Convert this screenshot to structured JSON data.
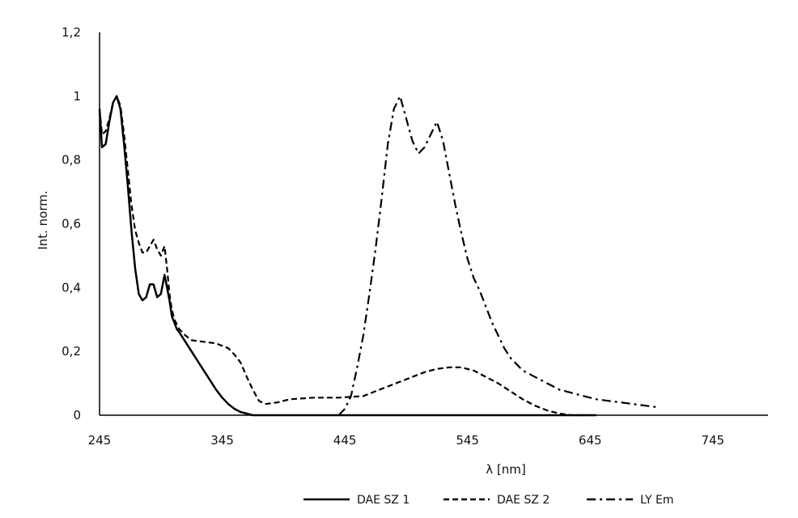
{
  "chart_data": {
    "type": "line",
    "xlabel": "λ [nm]",
    "ylabel": "Int. norm.",
    "xlim": [
      245,
      790
    ],
    "ylim": [
      0,
      1.2
    ],
    "xticks": [
      245,
      345,
      445,
      545,
      645,
      745
    ],
    "xtick_labels": [
      "245",
      "345",
      "445",
      "545",
      "645",
      "745"
    ],
    "yticks": [
      0,
      0.2,
      0.4,
      0.6,
      0.8,
      1,
      1.2
    ],
    "ytick_labels": [
      "0",
      "0,2",
      "0,4",
      "0,6",
      "0,8",
      "1",
      "1,2"
    ],
    "grid": false,
    "legend_position": "bottom",
    "series": [
      {
        "name": "DAE SZ 1",
        "style": "solid",
        "color": "#000000",
        "x": [
          245,
          247,
          250,
          253,
          256,
          259,
          262,
          265,
          268,
          271,
          274,
          277,
          280,
          283,
          286,
          289,
          292,
          295,
          298,
          300,
          302,
          304,
          306,
          308,
          310,
          315,
          320,
          325,
          330,
          335,
          340,
          345,
          350,
          355,
          360,
          365,
          370,
          380,
          400,
          450,
          500,
          550,
          600,
          650
        ],
        "y": [
          0.96,
          0.84,
          0.85,
          0.92,
          0.98,
          1.0,
          0.96,
          0.85,
          0.72,
          0.58,
          0.46,
          0.38,
          0.36,
          0.37,
          0.41,
          0.41,
          0.37,
          0.38,
          0.44,
          0.4,
          0.36,
          0.31,
          0.29,
          0.27,
          0.26,
          0.23,
          0.2,
          0.17,
          0.14,
          0.11,
          0.08,
          0.055,
          0.035,
          0.02,
          0.01,
          0.005,
          0.0,
          0.0,
          0.0,
          0.0,
          0.0,
          0.0,
          0.0,
          0.0
        ]
      },
      {
        "name": "DAE SZ 2",
        "style": "dashed",
        "color": "#000000",
        "x": [
          245,
          247,
          250,
          253,
          256,
          259,
          262,
          265,
          268,
          271,
          274,
          277,
          280,
          283,
          286,
          289,
          292,
          295,
          298,
          300,
          302,
          304,
          306,
          310,
          315,
          320,
          330,
          340,
          350,
          355,
          360,
          365,
          370,
          375,
          380,
          390,
          400,
          420,
          440,
          460,
          470,
          480,
          490,
          500,
          510,
          520,
          530,
          540,
          550,
          560,
          570,
          580,
          590,
          600,
          610,
          620,
          630,
          640,
          650
        ],
        "y": [
          0.96,
          0.88,
          0.89,
          0.93,
          0.98,
          1.0,
          0.97,
          0.88,
          0.77,
          0.66,
          0.58,
          0.54,
          0.51,
          0.51,
          0.53,
          0.55,
          0.52,
          0.5,
          0.53,
          0.46,
          0.38,
          0.33,
          0.3,
          0.27,
          0.25,
          0.235,
          0.23,
          0.225,
          0.21,
          0.19,
          0.165,
          0.12,
          0.08,
          0.045,
          0.035,
          0.04,
          0.05,
          0.055,
          0.055,
          0.06,
          0.075,
          0.09,
          0.105,
          0.12,
          0.135,
          0.145,
          0.15,
          0.15,
          0.14,
          0.12,
          0.1,
          0.075,
          0.05,
          0.03,
          0.015,
          0.005,
          0.0,
          0.0,
          0.0
        ]
      },
      {
        "name": "LY Em",
        "style": "dash-dot",
        "color": "#000000",
        "x": [
          440,
          445,
          450,
          455,
          460,
          465,
          470,
          475,
          480,
          485,
          490,
          495,
          500,
          505,
          510,
          515,
          520,
          525,
          530,
          535,
          540,
          545,
          550,
          555,
          560,
          565,
          570,
          575,
          580,
          590,
          600,
          610,
          620,
          630,
          640,
          650,
          660,
          670,
          680,
          690,
          700
        ],
        "y": [
          0.0,
          0.02,
          0.06,
          0.15,
          0.25,
          0.38,
          0.52,
          0.68,
          0.85,
          0.96,
          1.0,
          0.93,
          0.86,
          0.82,
          0.84,
          0.88,
          0.92,
          0.86,
          0.76,
          0.66,
          0.57,
          0.49,
          0.43,
          0.39,
          0.34,
          0.29,
          0.25,
          0.21,
          0.18,
          0.14,
          0.12,
          0.1,
          0.08,
          0.07,
          0.06,
          0.05,
          0.045,
          0.04,
          0.035,
          0.03,
          0.025
        ]
      }
    ]
  }
}
